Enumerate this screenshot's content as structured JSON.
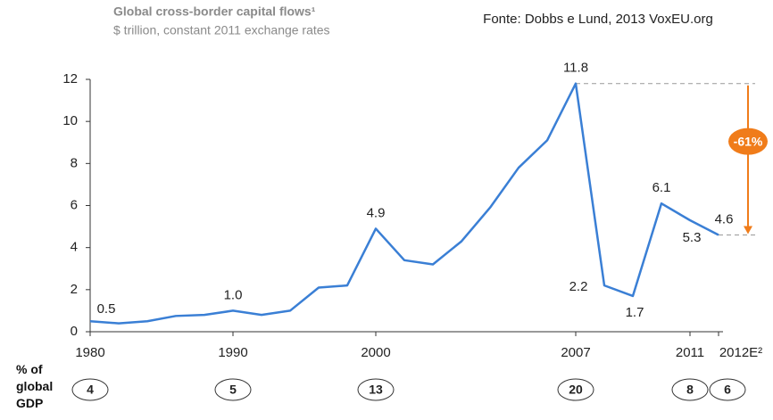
{
  "chart_data": {
    "type": "line",
    "title": "Global cross-border capital flows¹",
    "subtitle": "$ trillion, constant 2011 exchange rates",
    "source": "Fonte: Dobbs e Lund, 2013 VoxEU.org",
    "categories": [
      "1980",
      null,
      null,
      null,
      null,
      "1990",
      null,
      null,
      null,
      null,
      "2000",
      null,
      null,
      null,
      null,
      null,
      null,
      "2007",
      null,
      null,
      null,
      "2011",
      "2012E²"
    ],
    "series": [
      {
        "name": "Global cross-border capital flows",
        "color": "#3a7fd5",
        "values": [
          0.5,
          0.4,
          0.5,
          0.75,
          0.8,
          1.0,
          0.8,
          1.0,
          2.1,
          2.2,
          4.9,
          3.4,
          3.2,
          4.3,
          5.9,
          7.8,
          9.1,
          11.8,
          2.2,
          1.7,
          6.1,
          5.3,
          4.6
        ],
        "value_labels": [
          "0.5",
          null,
          null,
          null,
          null,
          "1.0",
          null,
          null,
          null,
          null,
          "4.9",
          null,
          null,
          null,
          null,
          null,
          null,
          "11.8",
          "2.2",
          "1.7",
          "6.1",
          "5.3",
          "4.6"
        ]
      }
    ],
    "ylim": [
      0,
      12
    ],
    "yticks": [
      0,
      2,
      4,
      6,
      8,
      10,
      12
    ],
    "grid": false,
    "annotation": {
      "text": "-61%",
      "color": "#f07c1a"
    },
    "gdp_share": {
      "label": "% of global GDP",
      "years": [
        "1980",
        "1990",
        "2000",
        "2007",
        "2011",
        "2012E²"
      ],
      "values": [
        4,
        5,
        13,
        20,
        8,
        6
      ]
    }
  }
}
